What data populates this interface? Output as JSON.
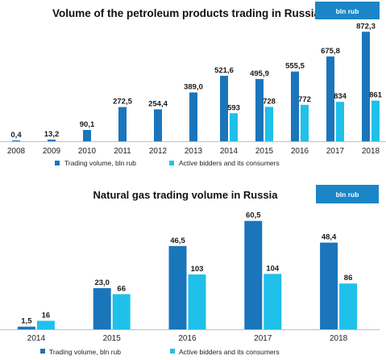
{
  "colors": {
    "dark": "#1b75bb",
    "light": "#1fc0ea",
    "badge": "#1a86c8",
    "axis": "#bfbfbf"
  },
  "chart_data": [
    {
      "type": "bar",
      "title": "Volume of the petroleum products trading in Russia",
      "unit_badge": "bln rub",
      "categories": [
        "2008",
        "2009",
        "2010",
        "2011",
        "2012",
        "2013",
        "2014",
        "2015",
        "2016",
        "2017",
        "2018"
      ],
      "series": [
        {
          "name": "Trading volume, bln rub",
          "values": [
            0.4,
            13.2,
            90.1,
            272.5,
            254.4,
            389.0,
            521.6,
            495.9,
            555.5,
            675.8,
            872.3
          ],
          "labels": [
            "0,4",
            "13,2",
            "90,1",
            "272,5",
            "254,4",
            "389,0",
            "521,6",
            "495,9",
            "555,5",
            "675,8",
            "872,3"
          ]
        },
        {
          "name": "Active bidders and its consumers",
          "values": [
            null,
            null,
            null,
            null,
            null,
            null,
            593,
            728,
            772,
            834,
            861
          ],
          "labels": [
            null,
            null,
            null,
            null,
            null,
            null,
            "593",
            "728",
            "772",
            "834",
            "861"
          ]
        }
      ],
      "legend": [
        "Trading volume, bln rub",
        "Active bidders and its consumers"
      ],
      "legend_position": "bottom"
    },
    {
      "type": "bar",
      "title": "Natural gas trading volume in Russia",
      "unit_badge": "bln rub",
      "categories": [
        "2014",
        "2015",
        "2016",
        "2017",
        "2018"
      ],
      "series": [
        {
          "name": "Trading volume, bln rub",
          "values": [
            1.5,
            23.0,
            46.5,
            60.5,
            48.4
          ],
          "labels": [
            "1,5",
            "23,0",
            "46,5",
            "60,5",
            "48,4"
          ]
        },
        {
          "name": "Active bidders and its consumers",
          "values": [
            16,
            66,
            103,
            104,
            86
          ],
          "labels": [
            "16",
            "66",
            "103",
            "104",
            "86"
          ]
        }
      ],
      "legend": [
        "Trading volume, bln rub",
        "Active bidders and its consumers"
      ],
      "legend_position": "bottom"
    }
  ]
}
